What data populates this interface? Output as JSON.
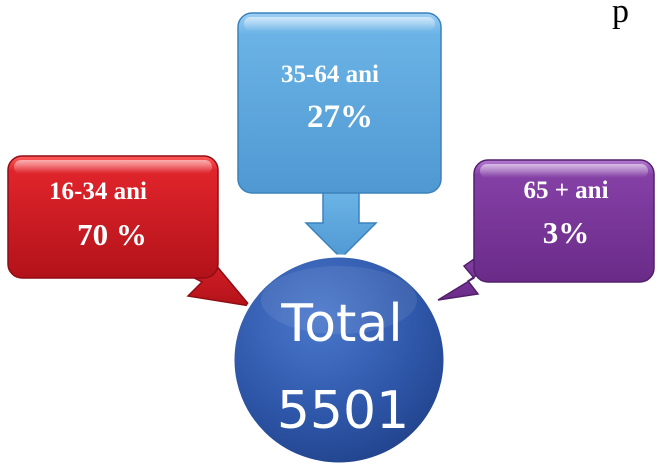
{
  "diagram": {
    "top_fragment": "p",
    "center": {
      "line1": "Total",
      "line2": "5501"
    },
    "boxes": [
      {
        "id": "young",
        "label": "16-34 ani",
        "value": "70 %",
        "color": "#c0161f"
      },
      {
        "id": "middle",
        "label": "35-64 ani",
        "value": "27%",
        "color": "#5fa7dd"
      },
      {
        "id": "senior",
        "label": "65 + ani",
        "value": "3%",
        "color": "#7a3596"
      }
    ],
    "circle_color": "#2e54a6"
  }
}
